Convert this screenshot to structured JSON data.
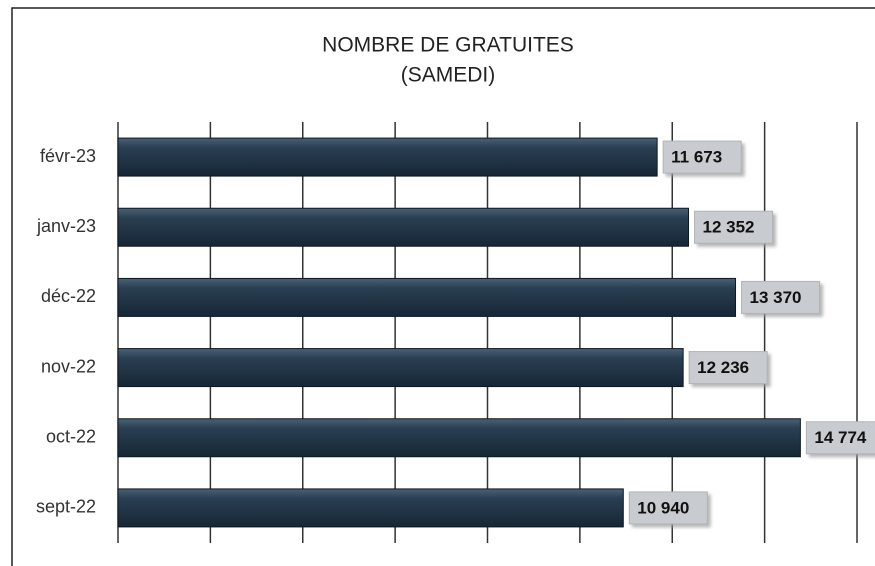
{
  "chart_data": {
    "type": "bar",
    "orientation": "horizontal",
    "title": "NOMBRE DE GRATUITES",
    "subtitle": "(SAMEDI)",
    "categories": [
      "févr-23",
      "janv-23",
      "déc-22",
      "nov-22",
      "oct-22",
      "sept-22"
    ],
    "values": [
      11673,
      12352,
      13370,
      12236,
      14774,
      10940
    ],
    "value_labels": [
      "11 673",
      "12 352",
      "13 370",
      "12 236",
      "14 774",
      "10 940"
    ],
    "color": "#1f3344",
    "xlim": [
      0,
      16000
    ],
    "xticks": [
      0,
      2000,
      4000,
      6000,
      8000,
      10000,
      12000,
      14000,
      16000
    ],
    "grid": true
  }
}
